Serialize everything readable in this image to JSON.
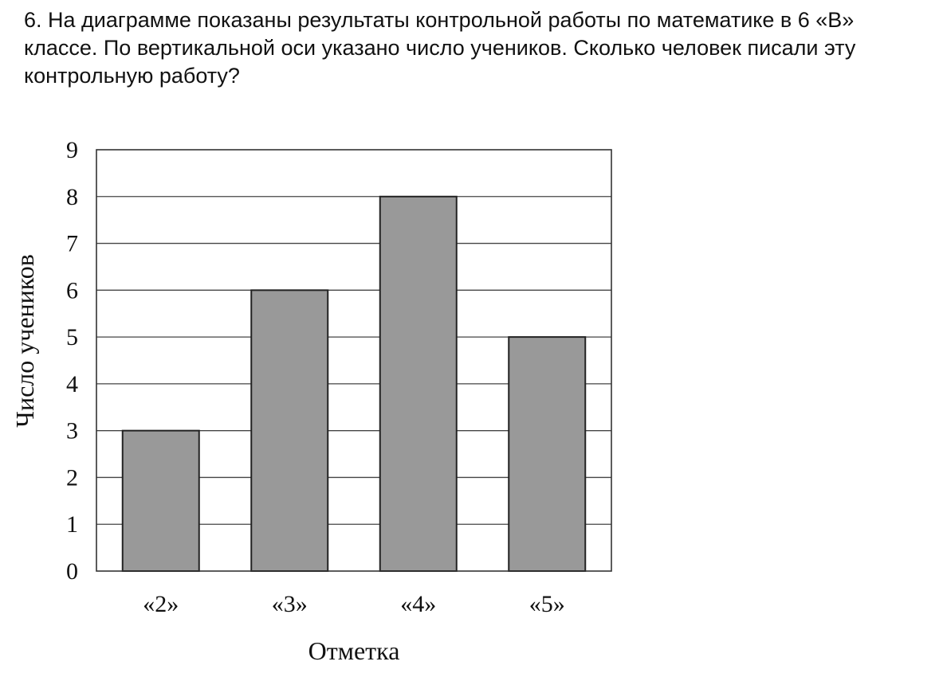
{
  "question": {
    "text": "6. На диаграмме показаны результаты контрольной работы по математике в 6 «В» классе. По вертикальной оси указано число учеников. Сколько человек писали эту контрольную работу?"
  },
  "chart_data": {
    "type": "bar",
    "categories": [
      "«2»",
      "«3»",
      "«4»",
      "«5»"
    ],
    "values": [
      3,
      6,
      8,
      5
    ],
    "xlabel": "Отметка",
    "ylabel": "Число учеников",
    "ylim": [
      0,
      9
    ],
    "yticks": [
      0,
      1,
      2,
      3,
      4,
      5,
      6,
      7,
      8,
      9
    ],
    "grid": true,
    "colors": {
      "bar": "#999999",
      "bar_stroke": "#222222",
      "grid": "#444444",
      "frame": "#333333"
    }
  }
}
